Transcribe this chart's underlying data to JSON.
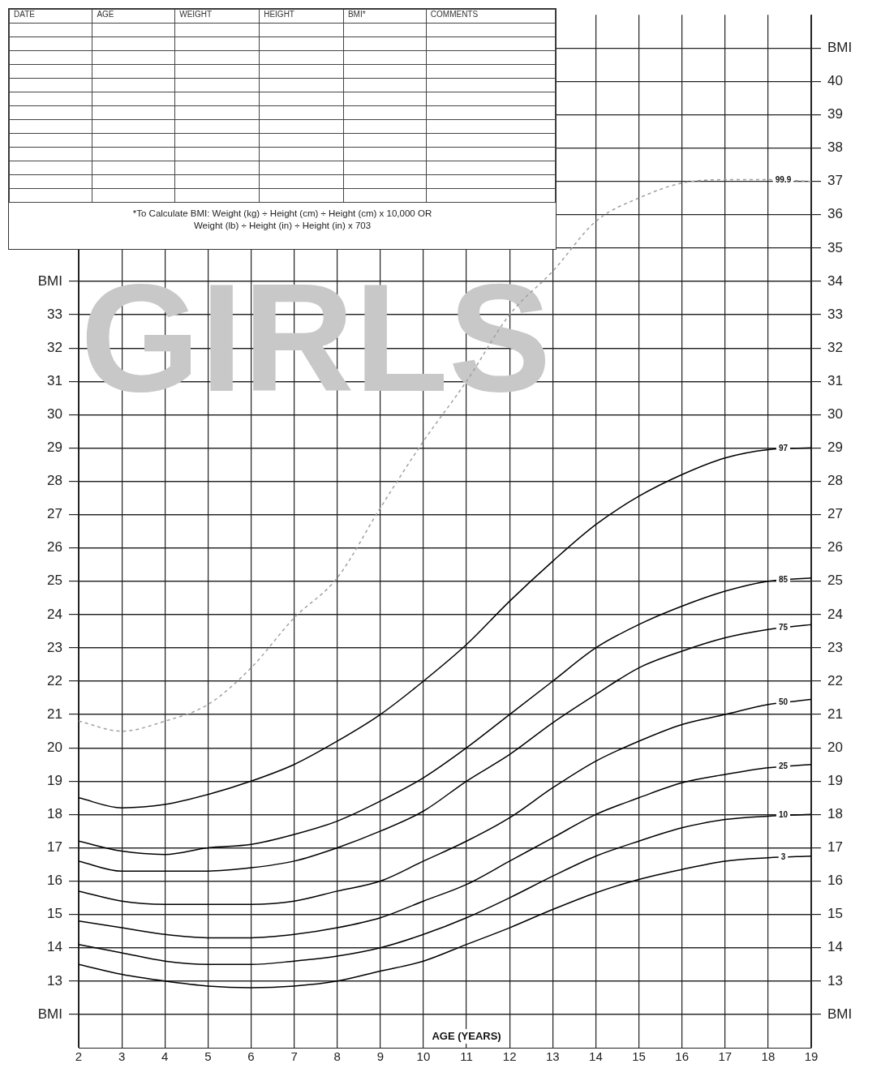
{
  "chart_data": {
    "type": "line",
    "title": "GIRLS",
    "xlabel": "AGE (YEARS)",
    "annotations": [
      "DATE",
      "AGE",
      "WEIGHT",
      "HEIGHT",
      "BMI*",
      "COMMENTS",
      "*To Calculate BMI: Weight (kg) ÷ Height (cm) ÷ Height (cm) x 10,000  OR",
      "Weight (lb) ÷ Height (in) ÷ Height (in) x 703"
    ],
    "x": [
      2,
      3,
      4,
      5,
      6,
      7,
      8,
      9,
      10,
      11,
      12,
      13,
      14,
      15,
      16,
      17,
      18,
      19
    ],
    "series": [
      {
        "name": "99.9",
        "color": "#a0a0a0",
        "line_style": "dashed",
        "values": [
          20.8,
          20.5,
          20.8,
          21.3,
          22.4,
          23.9,
          25.1,
          27.2,
          29.2,
          31.0,
          33.0,
          34.3,
          35.8,
          36.5,
          36.95,
          37.05,
          37.05,
          37.0
        ]
      },
      {
        "name": "97",
        "color": "#000000",
        "values": [
          18.5,
          18.2,
          18.3,
          18.6,
          19.0,
          19.5,
          20.2,
          21.0,
          22.0,
          23.1,
          24.4,
          25.6,
          26.7,
          27.55,
          28.2,
          28.7,
          28.95,
          29.0
        ]
      },
      {
        "name": "85",
        "color": "#000000",
        "values": [
          17.2,
          16.9,
          16.8,
          17.0,
          17.1,
          17.4,
          17.8,
          18.4,
          19.1,
          20.0,
          21.0,
          22.0,
          23.0,
          23.7,
          24.25,
          24.7,
          25.0,
          25.1
        ]
      },
      {
        "name": "75",
        "color": "#000000",
        "values": [
          16.6,
          16.3,
          16.3,
          16.3,
          16.4,
          16.6,
          17.0,
          17.5,
          18.1,
          19.0,
          19.8,
          20.75,
          21.6,
          22.4,
          22.9,
          23.3,
          23.55,
          23.7
        ]
      },
      {
        "name": "50",
        "color": "#000000",
        "values": [
          15.7,
          15.4,
          15.3,
          15.3,
          15.3,
          15.4,
          15.7,
          16.0,
          16.6,
          17.2,
          17.9,
          18.8,
          19.6,
          20.2,
          20.7,
          21.0,
          21.3,
          21.45
        ]
      },
      {
        "name": "25",
        "color": "#000000",
        "values": [
          14.8,
          14.6,
          14.4,
          14.3,
          14.3,
          14.4,
          14.6,
          14.9,
          15.4,
          15.9,
          16.6,
          17.3,
          18.0,
          18.5,
          18.95,
          19.2,
          19.4,
          19.5
        ]
      },
      {
        "name": "10",
        "color": "#000000",
        "values": [
          14.1,
          13.85,
          13.6,
          13.5,
          13.5,
          13.6,
          13.75,
          14.0,
          14.4,
          14.9,
          15.5,
          16.15,
          16.75,
          17.2,
          17.6,
          17.85,
          17.95,
          18.0
        ]
      },
      {
        "name": "3",
        "color": "#000000",
        "values": [
          13.5,
          13.2,
          13.0,
          12.85,
          12.8,
          12.85,
          13.0,
          13.3,
          13.6,
          14.1,
          14.6,
          15.15,
          15.65,
          16.05,
          16.35,
          16.6,
          16.7,
          16.75
        ]
      }
    ],
    "xlim": [
      2,
      19
    ],
    "xticks": [
      2,
      3,
      4,
      5,
      6,
      7,
      8,
      9,
      10,
      11,
      12,
      13,
      14,
      15,
      16,
      17,
      18,
      19
    ],
    "ylim": [
      11,
      42
    ],
    "yticks": [
      {
        "value": 12,
        "label": "BMI"
      },
      13,
      14,
      15,
      16,
      17,
      18,
      19,
      20,
      21,
      22,
      23,
      24,
      25,
      26,
      27,
      28,
      29,
      30,
      31,
      32,
      33,
      {
        "value": 34,
        "label": "BMI"
      }
    ],
    "y2lim": [
      11,
      42
    ],
    "y2ticks": [
      {
        "value": 12,
        "label": "BMI"
      },
      13,
      14,
      15,
      16,
      17,
      18,
      19,
      20,
      21,
      22,
      23,
      24,
      25,
      26,
      27,
      28,
      29,
      30,
      31,
      32,
      33,
      34,
      35,
      36,
      37,
      38,
      39,
      40,
      {
        "value": 41,
        "label": "BMI"
      }
    ],
    "grid": true,
    "legend": false,
    "marker": "none",
    "line_style": "solid"
  }
}
